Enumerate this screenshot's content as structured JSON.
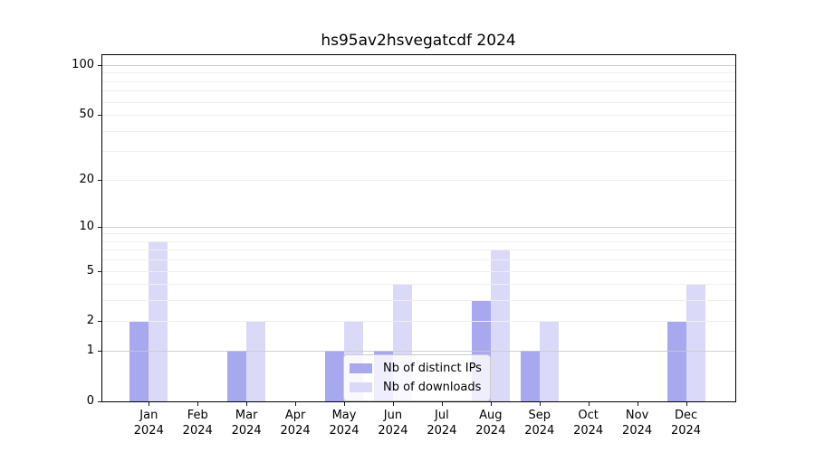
{
  "chart_data": {
    "type": "bar",
    "title": "hs95av2hsvegatcdf 2024",
    "categories": [
      {
        "month": "Jan",
        "year": "2024"
      },
      {
        "month": "Feb",
        "year": "2024"
      },
      {
        "month": "Mar",
        "year": "2024"
      },
      {
        "month": "Apr",
        "year": "2024"
      },
      {
        "month": "May",
        "year": "2024"
      },
      {
        "month": "Jun",
        "year": "2024"
      },
      {
        "month": "Jul",
        "year": "2024"
      },
      {
        "month": "Aug",
        "year": "2024"
      },
      {
        "month": "Sep",
        "year": "2024"
      },
      {
        "month": "Oct",
        "year": "2024"
      },
      {
        "month": "Nov",
        "year": "2024"
      },
      {
        "month": "Dec",
        "year": "2024"
      }
    ],
    "series": [
      {
        "name": "Nb of distinct IPs",
        "color": "#a8a8ef",
        "values": [
          2,
          0,
          1,
          0,
          1,
          1,
          0,
          3,
          1,
          0,
          0,
          2
        ]
      },
      {
        "name": "Nb of downloads",
        "color": "#dadaf8",
        "values": [
          8,
          0,
          2,
          0,
          2,
          4,
          0,
          7,
          2,
          0,
          0,
          4
        ]
      }
    ],
    "xlabel": "",
    "ylabel": "",
    "yscale": "log1p",
    "y_ticks": [
      0,
      1,
      2,
      5,
      10,
      20,
      50,
      100
    ],
    "ylim": [
      0,
      116
    ],
    "grid": true,
    "legend": {
      "entries": [
        "Nb of distinct IPs",
        "Nb of downloads"
      ],
      "position": "lower-center"
    },
    "colors": {
      "background": "#ffffff",
      "spine": "#000000",
      "grid_major": "#c8c8c8",
      "grid_minor": "#efefef",
      "text": "#000000"
    }
  }
}
